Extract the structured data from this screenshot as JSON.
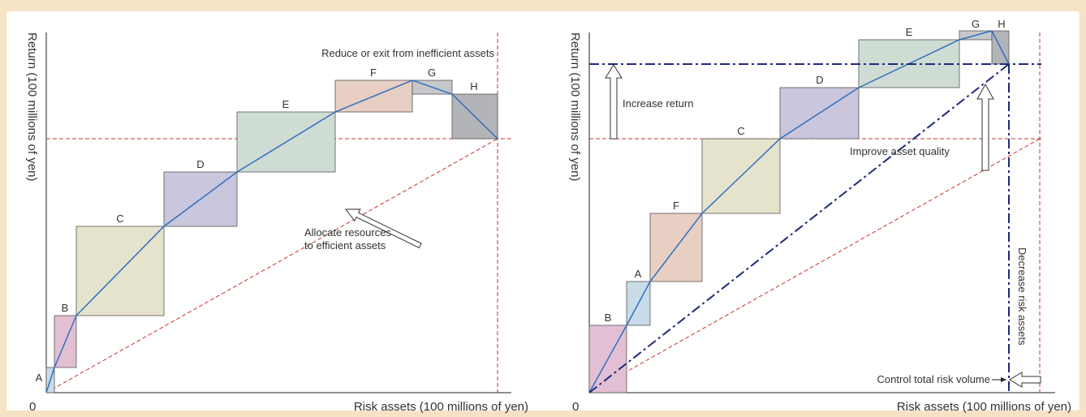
{
  "colors": {
    "page_background": "#f6e3c6",
    "panel_background": "#ffffff",
    "curve": "#2f6fc0",
    "guide": "#c0392b",
    "control": "#1f2a7a",
    "blocks": {
      "A": "#c9dbe6",
      "B": "#e2bfd3",
      "C": "#e6e3cc",
      "D": "#c9c6dd",
      "E": "#cfdcd3",
      "F": "#e8cfc4",
      "G": "#c6c8cc",
      "H": "#b3b4b8"
    }
  },
  "left": {
    "ylabel": "Return (100 millions of yen)",
    "xlabel": "Risk assets (100 millions of yen)",
    "origin_label": "0",
    "annotations": {
      "reduce": "Reduce or exit from inefficient assets",
      "allocate_line1": "Allocate resources",
      "allocate_line2": "to efficient assets"
    },
    "blocks": [
      {
        "label": "A",
        "risk": 1,
        "return": 1.5
      },
      {
        "label": "B",
        "risk": 2.5,
        "return": 3
      },
      {
        "label": "C",
        "risk": 10,
        "return": 10
      },
      {
        "label": "D",
        "risk": 8,
        "return": 6
      },
      {
        "label": "E",
        "risk": 11,
        "return": 6.5
      },
      {
        "label": "F",
        "risk": 8.5,
        "return": 1.7
      },
      {
        "label": "G",
        "risk": 4.5,
        "return": -0.7
      },
      {
        "label": "H",
        "risk": 5,
        "return": -2.5
      }
    ]
  },
  "right": {
    "ylabel": "Return (100 millions of yen)",
    "xlabel": "Risk assets (100 millions of yen)",
    "origin_label": "0",
    "annotations": {
      "increase_return": "Increase return",
      "improve_quality": "Improve asset quality",
      "decrease_risk": "Decrease risk assets",
      "control_total": "Control total risk volume"
    },
    "blocks": [
      {
        "label": "B",
        "risk": 2,
        "return": 3
      },
      {
        "label": "A",
        "risk": 1.5,
        "return": 2.5
      },
      {
        "label": "F",
        "risk": 3,
        "return": 3.5
      },
      {
        "label": "C",
        "risk": 4.5,
        "return": 4.3
      },
      {
        "label": "D",
        "risk": 4.5,
        "return": 2.7
      },
      {
        "label": "E",
        "risk": 5.5,
        "return": 2.4
      },
      {
        "label": "G",
        "risk": 2,
        "return": 0.5
      },
      {
        "label": "H",
        "risk": 1,
        "return": -1.6
      }
    ]
  }
}
